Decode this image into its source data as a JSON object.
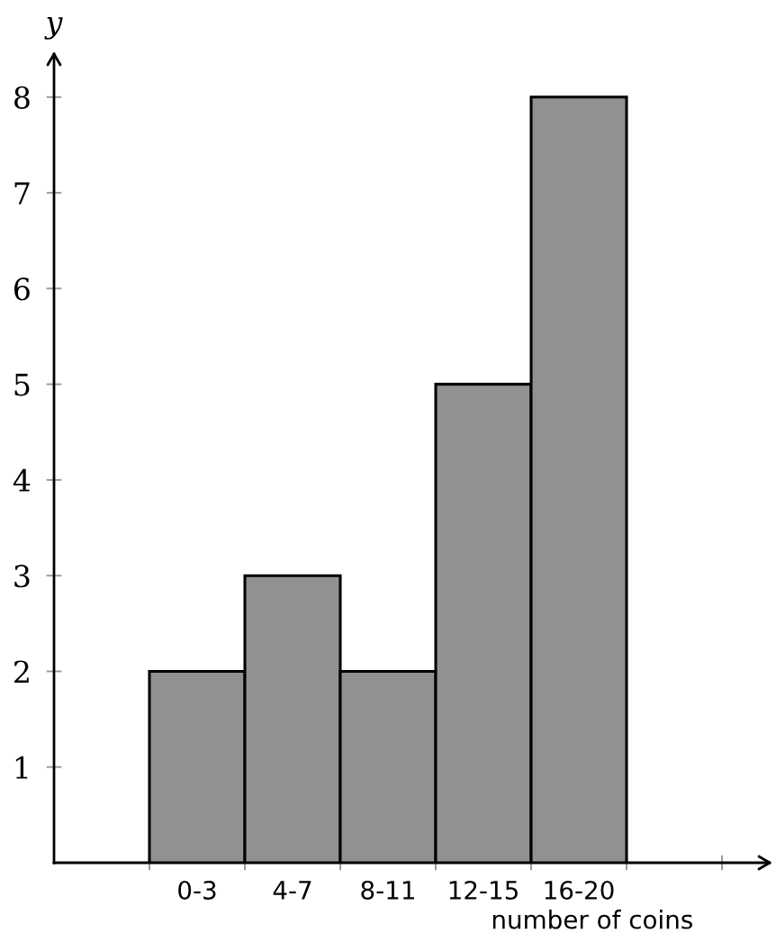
{
  "chart_data": {
    "type": "bar",
    "categories": [
      "0-3",
      "4-7",
      "8-11",
      "12-15",
      "16-20"
    ],
    "values": [
      2,
      3,
      2,
      5,
      8
    ],
    "color": "#919191",
    "xlabel": "number of coins",
    "ylabel": "y",
    "ylim": [
      0,
      8.45
    ],
    "yticks": [
      1,
      2,
      3,
      4,
      5,
      6,
      7,
      8
    ],
    "grid": false
  }
}
